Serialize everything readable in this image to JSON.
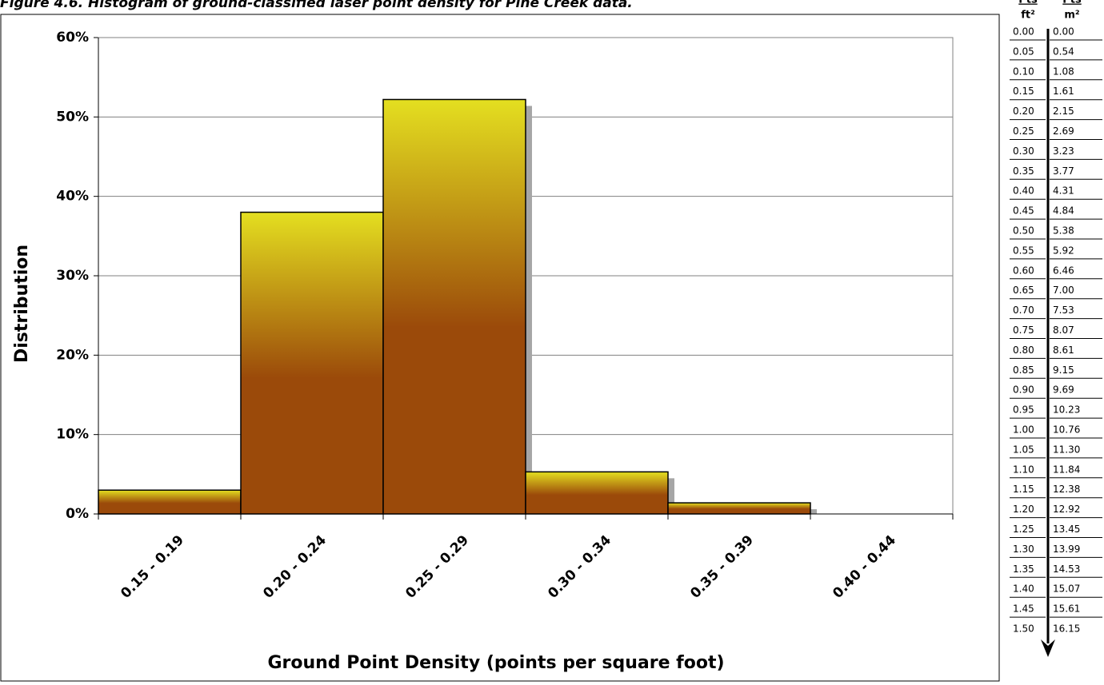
{
  "chart_data": {
    "type": "bar",
    "title": "Figure 4.6. Histogram of ground-classified laser point density for Pine Creek data.",
    "x_label": "Ground Point Density (points per square foot)",
    "y_label": "Distribution",
    "categories": [
      "0.15 - 0.19",
      "0.20 - 0.24",
      "0.25 - 0.29",
      "0.30 - 0.34",
      "0.35 - 0.39",
      "0.40 - 0.44"
    ],
    "values": [
      3,
      38,
      52.2,
      5.3,
      1.4,
      0
    ],
    "ylim": [
      0,
      60
    ],
    "yticks": [
      {
        "value": 0,
        "label": "0%"
      },
      {
        "value": 10,
        "label": "10%"
      },
      {
        "value": 20,
        "label": "20%"
      },
      {
        "value": 30,
        "label": "30%"
      },
      {
        "value": 40,
        "label": "40%"
      },
      {
        "value": 50,
        "label": "50%"
      },
      {
        "value": 60,
        "label": "60%"
      }
    ],
    "grid": true
  },
  "table": {
    "columns": [
      {
        "header": "Pts",
        "unit": "ft²"
      },
      {
        "header": "Pts",
        "unit": "m²"
      }
    ],
    "rows": [
      [
        "0.00",
        "0.00"
      ],
      [
        "0.05",
        "0.54"
      ],
      [
        "0.10",
        "1.08"
      ],
      [
        "0.15",
        "1.61"
      ],
      [
        "0.20",
        "2.15"
      ],
      [
        "0.25",
        "2.69"
      ],
      [
        "0.30",
        "3.23"
      ],
      [
        "0.35",
        "3.77"
      ],
      [
        "0.40",
        "4.31"
      ],
      [
        "0.45",
        "4.84"
      ],
      [
        "0.50",
        "5.38"
      ],
      [
        "0.55",
        "5.92"
      ],
      [
        "0.60",
        "6.46"
      ],
      [
        "0.65",
        "7.00"
      ],
      [
        "0.70",
        "7.53"
      ],
      [
        "0.75",
        "8.07"
      ],
      [
        "0.80",
        "8.61"
      ],
      [
        "0.85",
        "9.15"
      ],
      [
        "0.90",
        "9.69"
      ],
      [
        "0.95",
        "10.23"
      ],
      [
        "1.00",
        "10.76"
      ],
      [
        "1.05",
        "11.30"
      ],
      [
        "1.10",
        "11.84"
      ],
      [
        "1.15",
        "12.38"
      ],
      [
        "1.20",
        "12.92"
      ],
      [
        "1.25",
        "13.45"
      ],
      [
        "1.30",
        "13.99"
      ],
      [
        "1.35",
        "14.53"
      ],
      [
        "1.40",
        "15.07"
      ],
      [
        "1.45",
        "15.61"
      ],
      [
        "1.50",
        "16.15"
      ]
    ]
  }
}
